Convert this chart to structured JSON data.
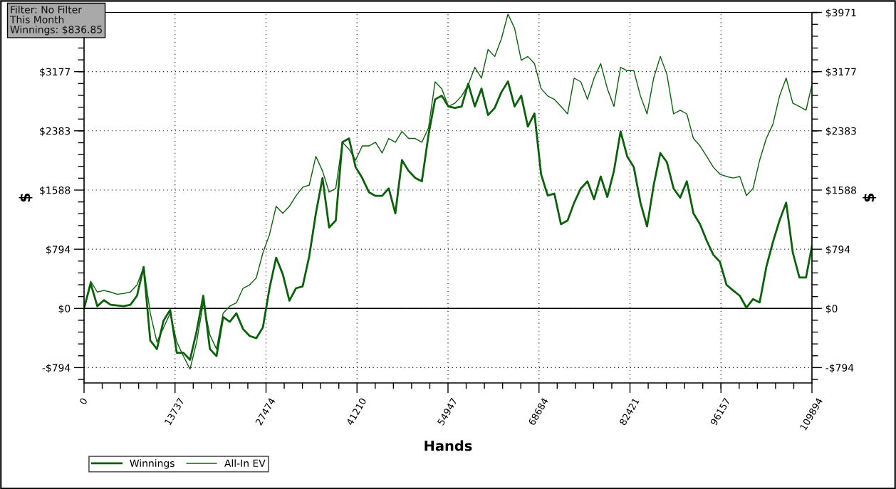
{
  "chart_data": {
    "type": "line",
    "xlabel": "Hands",
    "ylabel": "$",
    "y2label": "$",
    "annotations": [
      "Filter: No Filter",
      "This Month",
      "Winnings: $836.85"
    ],
    "x": [
      0,
      1000,
      2000,
      3000,
      4000,
      5000,
      6000,
      7000,
      8000,
      9000,
      10000,
      11000,
      12000,
      13000,
      14000,
      15000,
      16000,
      17000,
      18000,
      19000,
      20000,
      21000,
      22000,
      23000,
      24000,
      25000,
      26000,
      27000,
      28000,
      29000,
      30000,
      31000,
      32000,
      33000,
      34000,
      35000,
      36000,
      37000,
      38000,
      39000,
      40000,
      41000,
      42000,
      43000,
      44000,
      45000,
      46000,
      47000,
      48000,
      49000,
      50000,
      51000,
      52000,
      53000,
      54000,
      55000,
      56000,
      57000,
      58000,
      59000,
      60000,
      61000,
      62000,
      63000,
      64000,
      65000,
      66000,
      67000,
      68000,
      69000,
      70000,
      71000,
      72000,
      73000,
      74000,
      75000,
      76000,
      77000,
      78000,
      79000,
      80000,
      81000,
      82000,
      83000,
      84000,
      85000,
      86000,
      87000,
      88000,
      89000,
      90000,
      91000,
      92000,
      93000,
      94000,
      95000,
      96000,
      97000,
      98000,
      99000,
      100000,
      101000,
      102000,
      103000,
      104000,
      105000,
      106000,
      107000,
      108000,
      109000,
      109894
    ],
    "series": [
      {
        "name": "Winnings",
        "color": "#0b610b",
        "values": [
          0,
          335,
          30,
          110,
          50,
          40,
          30,
          50,
          170,
          555,
          -430,
          -545,
          -165,
          -20,
          -595,
          -595,
          -690,
          -305,
          170,
          -545,
          -640,
          -115,
          -180,
          -65,
          -275,
          -370,
          -400,
          -255,
          270,
          680,
          460,
          105,
          270,
          295,
          700,
          1275,
          1750,
          1085,
          1180,
          2230,
          2280,
          1895,
          1750,
          1560,
          1510,
          1510,
          1610,
          1275,
          1990,
          1845,
          1750,
          1705,
          2325,
          2805,
          2855,
          2710,
          2690,
          2710,
          3015,
          2710,
          2950,
          2595,
          2690,
          2900,
          3045,
          2710,
          2855,
          2440,
          2615,
          1800,
          1515,
          1540,
          1130,
          1180,
          1420,
          1610,
          1705,
          1465,
          1770,
          1495,
          1845,
          2375,
          2040,
          1895,
          1420,
          1100,
          1655,
          2085,
          1960,
          1610,
          1485,
          1705,
          1275,
          1130,
          910,
          720,
          625,
          315,
          240,
          170,
          10,
          125,
          80,
          555,
          890,
          1180,
          1420,
          750,
          415,
          415,
          837
        ]
      },
      {
        "name": "All-In EV",
        "color": "#0b610b",
        "values": [
          0,
          365,
          220,
          240,
          220,
          190,
          200,
          220,
          315,
          555,
          -65,
          -450,
          -260,
          -65,
          -450,
          -640,
          -815,
          -450,
          75,
          -355,
          -545,
          -65,
          30,
          75,
          270,
          315,
          410,
          745,
          990,
          1370,
          1275,
          1370,
          1510,
          1625,
          1655,
          2040,
          1845,
          1560,
          1610,
          2230,
          2135,
          1990,
          2180,
          2180,
          2230,
          2085,
          2280,
          2230,
          2375,
          2280,
          2280,
          2230,
          2420,
          3040,
          2950,
          2710,
          2755,
          2850,
          3000,
          3235,
          3090,
          3475,
          3380,
          3615,
          3950,
          3760,
          3330,
          3380,
          3285,
          2950,
          2850,
          2805,
          2710,
          2610,
          3090,
          3040,
          2805,
          3090,
          3285,
          2950,
          2710,
          3235,
          3190,
          3190,
          2850,
          2610,
          3090,
          3380,
          3140,
          2610,
          2660,
          2610,
          2280,
          2180,
          2040,
          1895,
          1800,
          1770,
          1750,
          1770,
          1515,
          1610,
          1990,
          2280,
          2470,
          2850,
          3090,
          2755,
          2710,
          2660,
          3000
        ]
      }
    ],
    "xlim": [
      0,
      109894
    ],
    "xticks": [
      0,
      13737,
      27474,
      41210,
      54947,
      68684,
      82421,
      96157,
      109894
    ],
    "ylim": [
      -1000,
      3971
    ],
    "yticks": [
      {
        "value": -794,
        "label": "-$794"
      },
      {
        "value": 0,
        "label": "$0"
      },
      {
        "value": 794,
        "label": "$794"
      },
      {
        "value": 1588,
        "label": "$1588"
      },
      {
        "value": 2383,
        "label": "$2383"
      },
      {
        "value": 3177,
        "label": "$3177"
      },
      {
        "value": 3971,
        "label": null
      }
    ],
    "y2lim": [
      -1000,
      3971
    ],
    "y2ticks": [
      {
        "value": -794,
        "label": "-$794"
      },
      {
        "value": 0,
        "label": "$0"
      },
      {
        "value": 794,
        "label": "$794"
      },
      {
        "value": 1588,
        "label": "$1588"
      },
      {
        "value": 2383,
        "label": "$2383"
      },
      {
        "value": 3177,
        "label": "$3177"
      },
      {
        "value": 3971,
        "label": "$3971"
      }
    ],
    "ref_lines": [
      {
        "axis": "y",
        "value": 0,
        "color": "#000000",
        "line_style": "solid"
      }
    ],
    "grid": true,
    "legend": "bottom left",
    "marker": "none",
    "line_style": "solid"
  }
}
